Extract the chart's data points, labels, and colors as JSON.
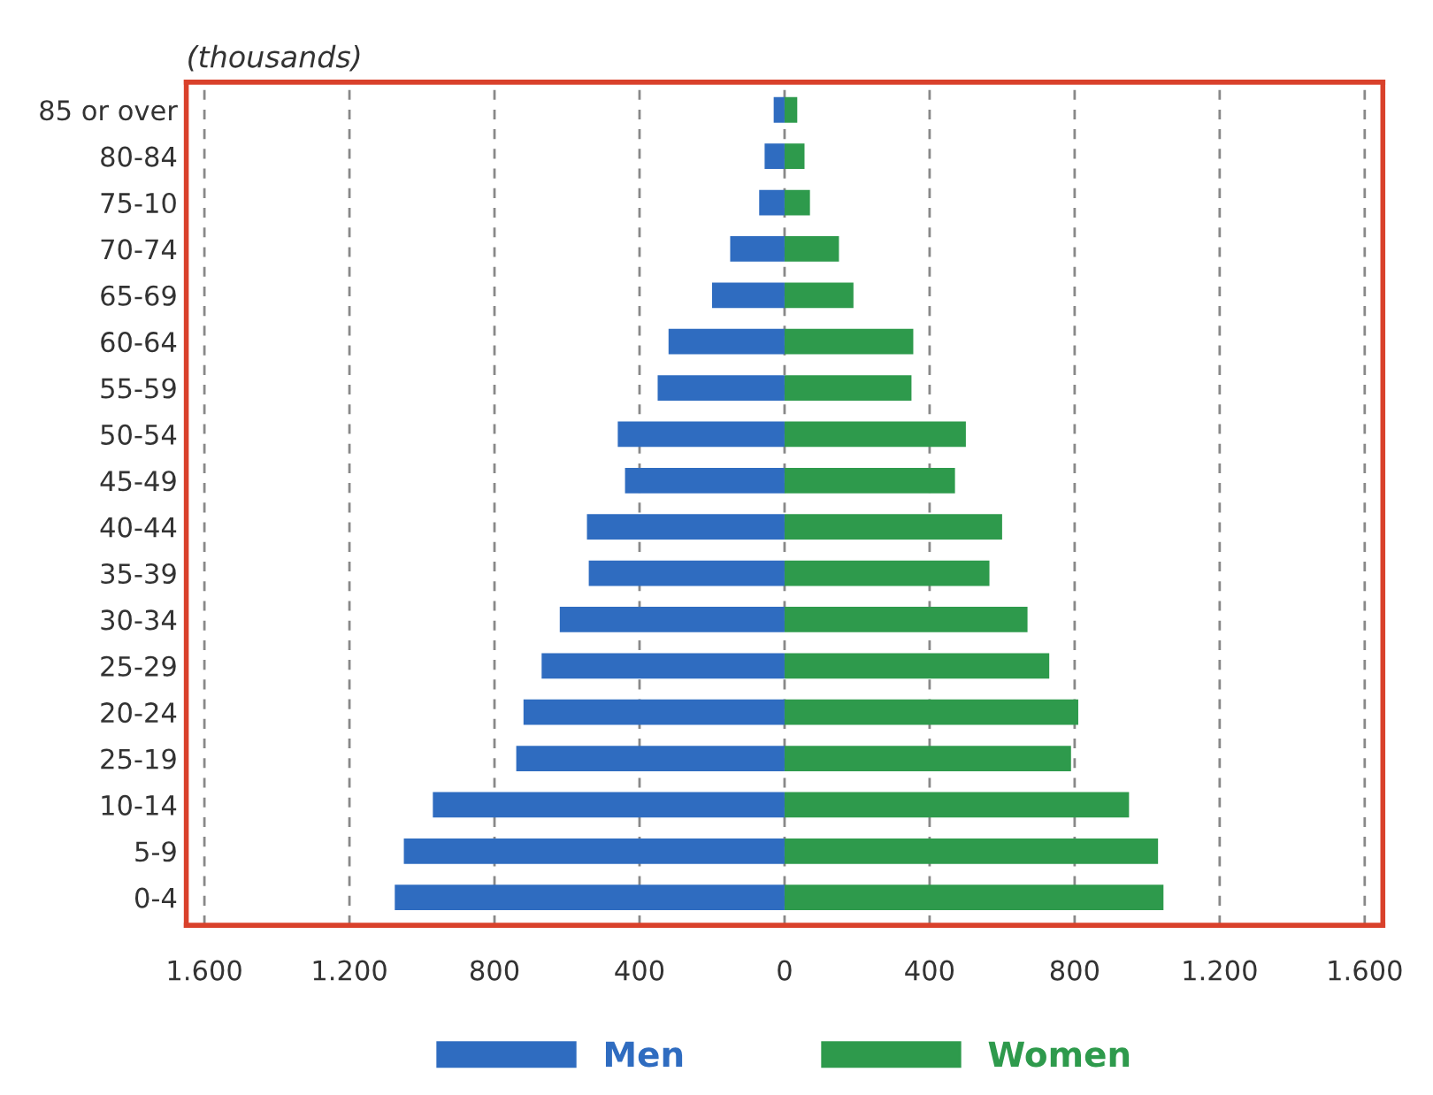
{
  "chart_data": {
    "type": "bar",
    "orientation": "horizontal",
    "title": "(thousands)",
    "categories": [
      "85 or over",
      "80-84",
      "75-10",
      "70-74",
      "65-69",
      "60-64",
      "55-59",
      "50-54",
      "45-49",
      "40-44",
      "35-39",
      "30-34",
      "25-29",
      "20-24",
      "25-19",
      "10-14",
      "5-9",
      "0-4"
    ],
    "series": [
      {
        "name": "Men",
        "color": "#2f6cc0",
        "values": [
          -30,
          -55,
          -70,
          -150,
          -200,
          -320,
          -350,
          -460,
          -440,
          -545,
          -540,
          -620,
          -670,
          -720,
          -740,
          -970,
          -1050,
          -1075
        ]
      },
      {
        "name": "Women",
        "color": "#2e9a4c",
        "values": [
          35,
          55,
          70,
          150,
          190,
          355,
          350,
          500,
          470,
          600,
          565,
          670,
          730,
          810,
          790,
          950,
          1030,
          1045
        ]
      }
    ],
    "xlim": [
      -1650,
      1650
    ],
    "xticks": [
      {
        "value": -1600,
        "label": "1.600"
      },
      {
        "value": -1200,
        "label": "1.200"
      },
      {
        "value": -800,
        "label": "800"
      },
      {
        "value": -400,
        "label": "400"
      },
      0,
      400,
      800,
      {
        "value": 1200,
        "label": "1.200"
      },
      {
        "value": 1600,
        "label": "1.600"
      }
    ],
    "stacked": true,
    "grid": "x",
    "legend": "bottom"
  }
}
